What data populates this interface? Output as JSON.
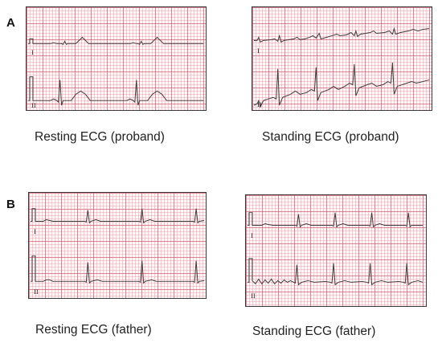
{
  "figure": {
    "panel_a_label": "A",
    "panel_b_label": "B",
    "strips": [
      {
        "caption": "Resting ECG  (proband)",
        "leads": [
          "I",
          "II"
        ]
      },
      {
        "caption": "Standing ECG (proband)",
        "leads": [
          "I",
          "II"
        ]
      },
      {
        "caption": "Resting ECG (father)",
        "leads": [
          "I",
          "II"
        ]
      },
      {
        "caption": "Standing ECG (father)",
        "leads": [
          "I",
          "II"
        ]
      }
    ]
  },
  "colors": {
    "grid": "#e0889a",
    "trace": "#3c3c3c",
    "frame": "#3a3a3a"
  }
}
